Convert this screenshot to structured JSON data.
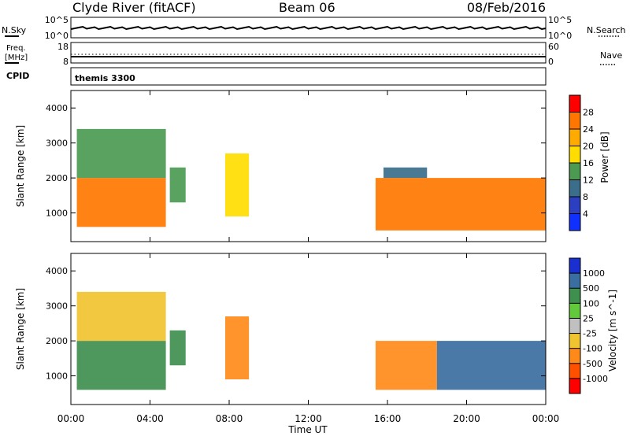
{
  "header": {
    "station": "Clyde River (fitACF)",
    "beam": "Beam 06",
    "date": "08/Feb/2016"
  },
  "summary_panels": {
    "nsky_label": "N.Sky",
    "nsky_ticks": [
      "10^5",
      "10^0"
    ],
    "nsearch_label": "N.Search",
    "nsearch_ticks": [
      "10^5",
      "10^0"
    ],
    "freq_label_1": "Freq.",
    "freq_label_2": "[MHz]",
    "freq_ticks": [
      "18",
      "8"
    ],
    "nave_label": "Nave",
    "nave_ticks": [
      "60",
      "0"
    ],
    "cpid_label": "CPID",
    "cpid_value": "themis 3300"
  },
  "chart_data": [
    {
      "type": "heatmap",
      "title": "",
      "quantity": "power",
      "ylabel": "Slant Range [km]",
      "ylim": [
        180,
        4500
      ],
      "yticks": [
        "1000",
        "2000",
        "3000",
        "4000"
      ],
      "xlabel": "Time UT",
      "xlim_hours": [
        0,
        24
      ],
      "colorbar_label": "Power [dB]",
      "colorbar_ticks": [
        "28",
        "24",
        "20",
        "16",
        "12",
        "8",
        "4"
      ],
      "colorbar_colors": [
        "#ff0000",
        "#ff7700",
        "#ffaa00",
        "#ffdd00",
        "#4c9a52",
        "#3a6e8a",
        "#2c3fc0",
        "#1030ff"
      ],
      "echo_regions": [
        {
          "t0": 0.3,
          "t1": 4.8,
          "r0": 600,
          "r1": 2000,
          "level": 24
        },
        {
          "t0": 0.3,
          "t1": 4.8,
          "r0": 2000,
          "r1": 3400,
          "level": 12
        },
        {
          "t0": 5.0,
          "t1": 5.8,
          "r0": 1300,
          "r1": 2300,
          "level": 14
        },
        {
          "t0": 7.8,
          "t1": 9.0,
          "r0": 900,
          "r1": 2700,
          "level": 16
        },
        {
          "t0": 15.4,
          "t1": 24.0,
          "r0": 500,
          "r1": 2000,
          "level": 26
        },
        {
          "t0": 15.8,
          "t1": 18.0,
          "r0": 2000,
          "r1": 2300,
          "level": 8
        }
      ]
    },
    {
      "type": "heatmap",
      "title": "",
      "quantity": "velocity",
      "ylabel": "Slant Range [km]",
      "ylim": [
        180,
        4500
      ],
      "yticks": [
        "1000",
        "2000",
        "3000",
        "4000"
      ],
      "xlabel": "Time UT",
      "xlim_hours": [
        0,
        24
      ],
      "xticks": [
        "00:00",
        "04:00",
        "08:00",
        "12:00",
        "16:00",
        "20:00",
        "00:00"
      ],
      "colorbar_label": "Velocity [m s^-1]",
      "colorbar_ticks": [
        "1000",
        "500",
        "100",
        "25",
        "-25",
        "-100",
        "-500",
        "-1000"
      ],
      "colorbar_colors": [
        "#1a2fcf",
        "#3b6ea0",
        "#3f8f4f",
        "#63c93c",
        "#c0c0c0",
        "#f0c330",
        "#ff8a1a",
        "#ff5000",
        "#ff0000"
      ],
      "echo_regions": [
        {
          "t0": 0.3,
          "t1": 4.8,
          "r0": 600,
          "r1": 2000,
          "level": 300
        },
        {
          "t0": 0.3,
          "t1": 4.8,
          "r0": 2000,
          "r1": 3400,
          "level": -50
        },
        {
          "t0": 5.0,
          "t1": 5.8,
          "r0": 1300,
          "r1": 2300,
          "level": 100
        },
        {
          "t0": 7.8,
          "t1": 9.0,
          "r0": 900,
          "r1": 2700,
          "level": -300
        },
        {
          "t0": 15.4,
          "t1": 18.5,
          "r0": 600,
          "r1": 2000,
          "level": -400
        },
        {
          "t0": 18.5,
          "t1": 24.0,
          "r0": 600,
          "r1": 2000,
          "level": 600
        }
      ]
    }
  ]
}
